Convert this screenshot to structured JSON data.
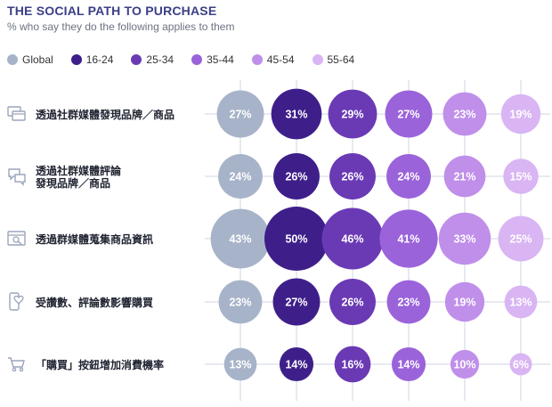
{
  "header": {
    "title": "THE SOCIAL PATH TO PURCHASE",
    "subtitle": "% who say they do the following applies to them"
  },
  "chart_data": {
    "type": "bubble-matrix",
    "series": [
      {
        "name": "Global",
        "color": "#a7b3c9"
      },
      {
        "name": "16-24",
        "color": "#3e1f8a"
      },
      {
        "name": "25-34",
        "color": "#6a3ab5"
      },
      {
        "name": "35-44",
        "color": "#9a63da"
      },
      {
        "name": "45-54",
        "color": "#c08fea"
      },
      {
        "name": "55-64",
        "color": "#d9b5f3"
      }
    ],
    "rows": [
      {
        "label": [
          "透過社群媒體發現品牌／商品"
        ],
        "icon": "browser-windows-icon",
        "values": [
          27,
          31,
          29,
          27,
          23,
          19
        ]
      },
      {
        "label": [
          "透過社群媒體評論",
          "發現品牌／商品"
        ],
        "icon": "chat-bubbles-icon",
        "values": [
          24,
          26,
          26,
          24,
          21,
          15
        ]
      },
      {
        "label": [
          "透過群媒體蒐集商品資訊"
        ],
        "icon": "search-window-icon",
        "values": [
          43,
          50,
          46,
          41,
          33,
          25
        ]
      },
      {
        "label": [
          "受讚數、評論數影響購買"
        ],
        "icon": "phone-heart-icon",
        "values": [
          23,
          27,
          26,
          23,
          19,
          13
        ]
      },
      {
        "label": [
          "「購買」按鈕增加消費機率"
        ],
        "icon": "shopping-cart-icon",
        "values": [
          13,
          14,
          16,
          14,
          10,
          6
        ]
      }
    ],
    "value_suffix": "%",
    "legend_position": "top-left",
    "grid": true
  }
}
